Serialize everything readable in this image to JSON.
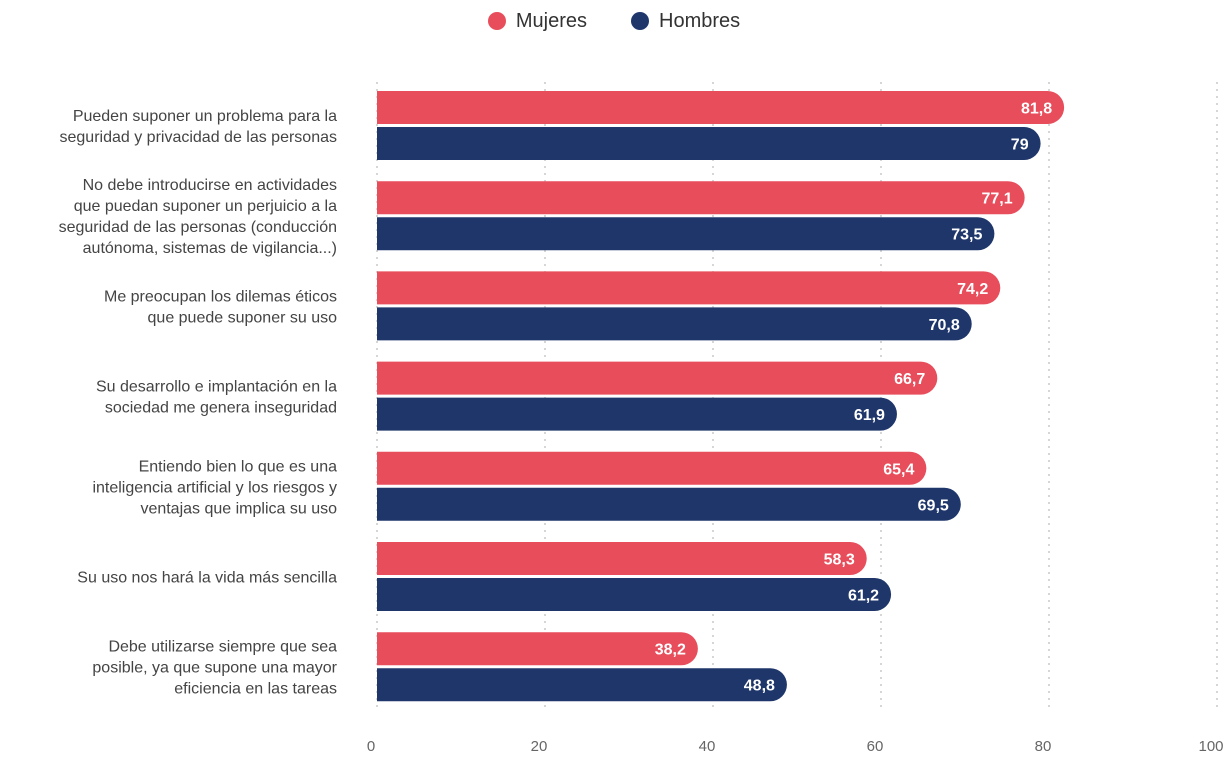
{
  "chart_data": {
    "type": "bar",
    "orientation": "horizontal",
    "categories": [
      [
        "Pueden suponer un problema para la",
        "seguridad y privacidad de las personas"
      ],
      [
        "No debe introducirse en actividades",
        "que puedan suponer un perjuicio a la",
        "seguridad de las personas (conducción",
        "autónoma, sistemas de vigilancia...)"
      ],
      [
        "Me preocupan los dilemas éticos",
        "que puede suponer su uso"
      ],
      [
        "Su desarrollo e implantación en la",
        "sociedad me genera inseguridad"
      ],
      [
        "Entiendo bien lo que es una",
        "inteligencia artificial y los riesgos y",
        "ventajas que implica su uso"
      ],
      [
        "Su uso nos hará la vida más sencilla"
      ],
      [
        "Debe utilizarse siempre que sea",
        "posible, ya que supone una mayor",
        "eficiencia en las tareas"
      ]
    ],
    "series": [
      {
        "name": "Mujeres",
        "color": "#e84d5b",
        "values": [
          81.8,
          77.1,
          74.2,
          66.7,
          65.4,
          58.3,
          38.2
        ],
        "labels": [
          "81,8",
          "77,1",
          "74,2",
          "66,7",
          "65,4",
          "58,3",
          "38,2"
        ]
      },
      {
        "name": "Hombres",
        "color": "#1f366b",
        "values": [
          79,
          73.5,
          70.8,
          61.9,
          69.5,
          61.2,
          48.8
        ],
        "labels": [
          "79",
          "73,5",
          "70,8",
          "61,9",
          "69,5",
          "61,2",
          "48,8"
        ]
      }
    ],
    "xlim": [
      0,
      100
    ],
    "xticks": [
      "0",
      "20",
      "40",
      "60",
      "80",
      "100"
    ],
    "grid": "vertical-dotted",
    "legend": "top-center"
  }
}
